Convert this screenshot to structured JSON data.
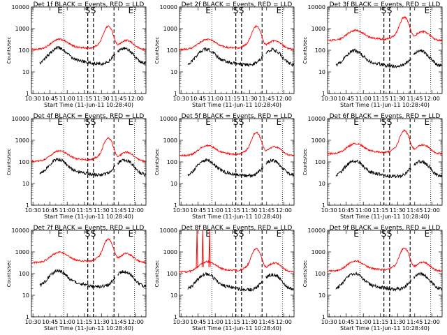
{
  "figure": {
    "ylabel": "Counts/sec",
    "xlabel": "Start Time (11-Jun-11 10:28:40)",
    "x_ticks": [
      "10:30",
      "10:45",
      "11:00",
      "11:15",
      "11:30",
      "11:45",
      "12:00"
    ],
    "y_ticks": [
      "1",
      "10",
      "100",
      "1000",
      "10000"
    ],
    "colors": {
      "events": "#000000",
      "lld": "#ff0000"
    }
  },
  "chart_data": [
    {
      "type": "line",
      "title": "Det 1f BLACK = Events, RED = LLD",
      "markers": [
        "E",
        "S",
        "S",
        "E"
      ],
      "ylim": [
        1,
        10000
      ],
      "xlim": [
        "10:28:40",
        "12:09"
      ],
      "events_scale": 0.48,
      "lld_scale": 1.0,
      "spikes": [],
      "series": [
        {
          "name": "Events",
          "color": "#000000"
        },
        {
          "name": "LLD",
          "color": "#ff0000"
        }
      ]
    },
    {
      "type": "line",
      "title": "Det 2f BLACK = Events, RED = LLD",
      "markers": [
        "E",
        "S",
        "S",
        "E"
      ],
      "ylim": [
        1,
        10000
      ],
      "xlim": [
        "10:28:40",
        "12:09"
      ],
      "events_scale": 0.42,
      "lld_scale": 1.0,
      "spikes": [],
      "series": [
        {
          "name": "Events",
          "color": "#000000"
        },
        {
          "name": "LLD",
          "color": "#ff0000"
        }
      ]
    },
    {
      "type": "line",
      "title": "Det 3f BLACK = Events, RED = LLD",
      "markers": [
        "E",
        "S",
        "S",
        "E"
      ],
      "ylim": [
        1,
        10000
      ],
      "xlim": [
        "10:28:40",
        "12:09"
      ],
      "events_scale": 0.36,
      "lld_scale": 2.6,
      "spikes": [],
      "series": [
        {
          "name": "Events",
          "color": "#000000"
        },
        {
          "name": "LLD",
          "color": "#ff0000"
        }
      ]
    },
    {
      "type": "line",
      "title": "Det 4f BLACK = Events, RED = LLD",
      "markers": [
        "E",
        "S",
        "S",
        "E"
      ],
      "ylim": [
        1,
        10000
      ],
      "xlim": [
        "10:28:40",
        "12:09"
      ],
      "events_scale": 0.5,
      "lld_scale": 1.0,
      "spikes": [],
      "series": [
        {
          "name": "Events",
          "color": "#000000"
        },
        {
          "name": "LLD",
          "color": "#ff0000"
        }
      ]
    },
    {
      "type": "line",
      "title": "Det 5f BLACK = Events, RED = LLD",
      "markers": [
        "E",
        "S",
        "S",
        "E"
      ],
      "ylim": [
        1,
        10000
      ],
      "xlim": [
        "10:28:40",
        "12:09"
      ],
      "events_scale": 0.46,
      "lld_scale": 1.8,
      "spikes": [],
      "series": [
        {
          "name": "Events",
          "color": "#000000"
        },
        {
          "name": "LLD",
          "color": "#ff0000"
        }
      ]
    },
    {
      "type": "line",
      "title": "Det 6f BLACK = Events, RED = LLD",
      "markers": [
        "E",
        "S",
        "S",
        "E"
      ],
      "ylim": [
        1,
        10000
      ],
      "xlim": [
        "10:28:40",
        "12:09"
      ],
      "events_scale": 0.42,
      "lld_scale": 2.2,
      "spikes": [],
      "series": [
        {
          "name": "Events",
          "color": "#000000"
        },
        {
          "name": "LLD",
          "color": "#ff0000"
        }
      ]
    },
    {
      "type": "line",
      "title": "Det 7f BLACK = Events, RED = LLD",
      "markers": [
        "E",
        "S",
        "S",
        "E"
      ],
      "ylim": [
        1,
        10000
      ],
      "xlim": [
        "10:28:40",
        "12:09"
      ],
      "events_scale": 0.5,
      "lld_scale": 3.0,
      "spikes": [],
      "series": [
        {
          "name": "Events",
          "color": "#000000"
        },
        {
          "name": "LLD",
          "color": "#ff0000"
        }
      ]
    },
    {
      "type": "line",
      "title": "Det 8f BLACK = Events, RED = LLD",
      "markers": [
        "E",
        "S",
        "S",
        "E"
      ],
      "ylim": [
        1,
        10000
      ],
      "xlim": [
        "10:28:40",
        "12:09"
      ],
      "events_scale": 0.36,
      "lld_scale": 1.1,
      "spikes": [
        "10:44",
        "10:49",
        "10:55"
      ],
      "series": [
        {
          "name": "Events",
          "color": "#000000"
        },
        {
          "name": "LLD",
          "color": "#ff0000"
        }
      ]
    },
    {
      "type": "line",
      "title": "Det 9f BLACK = Events, RED = LLD",
      "markers": [
        "E",
        "S",
        "S",
        "E"
      ],
      "ylim": [
        1,
        10000
      ],
      "xlim": [
        "10:28:40",
        "12:09"
      ],
      "events_scale": 0.38,
      "lld_scale": 1.2,
      "spikes": [],
      "series": [
        {
          "name": "Events",
          "color": "#000000"
        },
        {
          "name": "LLD",
          "color": "#ff0000"
        }
      ]
    }
  ]
}
